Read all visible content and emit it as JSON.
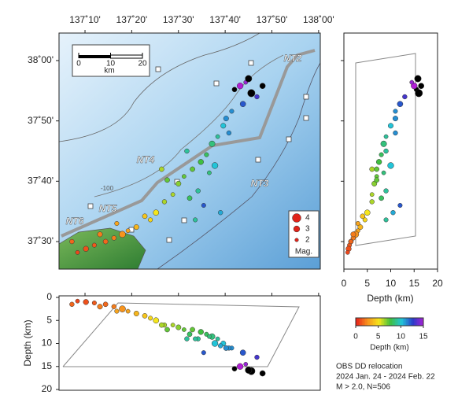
{
  "map": {
    "lonlim": [
      137.074,
      138.006
    ],
    "latlim": [
      37.424,
      38.076
    ],
    "lon_ticks": [
      {
        "value": 137.1667,
        "label": "137˚10'"
      },
      {
        "value": 137.3333,
        "label": "137˚20'"
      },
      {
        "value": 137.5,
        "label": "137˚30'"
      },
      {
        "value": 137.6667,
        "label": "137˚40'"
      },
      {
        "value": 137.8333,
        "label": "137˚50'"
      },
      {
        "value": 138.0,
        "label": "138˚00'"
      }
    ],
    "lat_ticks": [
      {
        "value": 38.0,
        "label": "38˚00'"
      },
      {
        "value": 37.8333,
        "label": "37˚50'"
      },
      {
        "value": 37.6667,
        "label": "37˚40'"
      },
      {
        "value": 37.5,
        "label": "37˚30'"
      }
    ],
    "scale_bar": {
      "ticks": [
        0,
        10,
        20
      ],
      "unit": "km"
    },
    "fault_labels": [
      "NT2",
      "NT3",
      "NT4",
      "NT5",
      "NT6"
    ],
    "contour_label": "-100",
    "magnitude_legend": {
      "values": [
        4,
        3,
        2
      ],
      "title": "Mag."
    },
    "events": {
      "lon": [
        137.7,
        137.72,
        137.74,
        137.76,
        137.78,
        137.73,
        137.69,
        137.75,
        137.66,
        137.64,
        137.62,
        137.68,
        137.6,
        137.58,
        137.55,
        137.52,
        137.5,
        137.57,
        137.63,
        137.59,
        137.54,
        137.48,
        137.45,
        137.42,
        137.4,
        137.38,
        137.35,
        137.32,
        137.3,
        137.27,
        137.24,
        137.2,
        137.17,
        137.14,
        137.12,
        137.22,
        137.28,
        137.46,
        137.53,
        137.61,
        137.67,
        137.8,
        137.65,
        137.56,
        137.44
      ],
      "lat": [
        37.92,
        37.93,
        37.94,
        37.91,
        37.9,
        37.88,
        37.86,
        37.95,
        37.82,
        37.79,
        37.77,
        37.8,
        37.74,
        37.72,
        37.7,
        37.68,
        37.66,
        37.64,
        37.71,
        37.6,
        37.62,
        37.63,
        37.61,
        37.58,
        37.56,
        37.57,
        37.54,
        37.53,
        37.52,
        37.51,
        37.5,
        37.49,
        37.48,
        37.47,
        37.5,
        37.52,
        37.55,
        37.67,
        37.75,
        37.69,
        37.84,
        37.93,
        37.58,
        37.56,
        37.7
      ],
      "depth": [
        15.5,
        15,
        14.5,
        16,
        13,
        12,
        11,
        15.8,
        10,
        9,
        8.5,
        11,
        8,
        7.5,
        7,
        7,
        6.5,
        9,
        10,
        12,
        8,
        6,
        6,
        5,
        4.5,
        4,
        3.5,
        3,
        2.5,
        2,
        1.5,
        1.2,
        1,
        0.8,
        1.5,
        2,
        3,
        7,
        9,
        8.5,
        11,
        16.5,
        10.5,
        9,
        6
      ],
      "mag": [
        2.5,
        3,
        2.2,
        3.5,
        2.4,
        2.8,
        2.3,
        3.2,
        2.6,
        2.2,
        2.9,
        2.4,
        2.3,
        2.7,
        2.5,
        2.2,
        2.6,
        2.4,
        3,
        2.3,
        2.5,
        2.2,
        2.4,
        2.8,
        2.3,
        2.5,
        2.6,
        2.2,
        3.1,
        2.4,
        2.5,
        2.3,
        2.7,
        2.2,
        2.4,
        2.6,
        2.3,
        2.5,
        2.4,
        2.2,
        2.6,
        2.8,
        2.4,
        2.3,
        2.5
      ]
    }
  },
  "depth_section": {
    "lim": [
      0,
      20
    ],
    "ticks": [
      0,
      5,
      10,
      15,
      20
    ],
    "xlabel": "Depth (km)"
  },
  "cross_section": {
    "lim": [
      0,
      20
    ],
    "ticks": [
      0,
      5,
      10,
      15,
      20
    ],
    "ylabel": "Depth (km)"
  },
  "colorbar": {
    "lim": [
      0,
      15
    ],
    "ticks": [
      0,
      5,
      10,
      15
    ],
    "label": "Depth (km)",
    "colors": [
      "#e8231a",
      "#f7941d",
      "#f5e61b",
      "#3fbf3f",
      "#22c4d8",
      "#2a3cc9",
      "#b21fd6"
    ],
    "deep_color": "#000000"
  },
  "notes": [
    "OBS DD relocation",
    "2024 Jan. 24 - 2024 Feb. 22",
    "M > 2.0, N=506"
  ]
}
